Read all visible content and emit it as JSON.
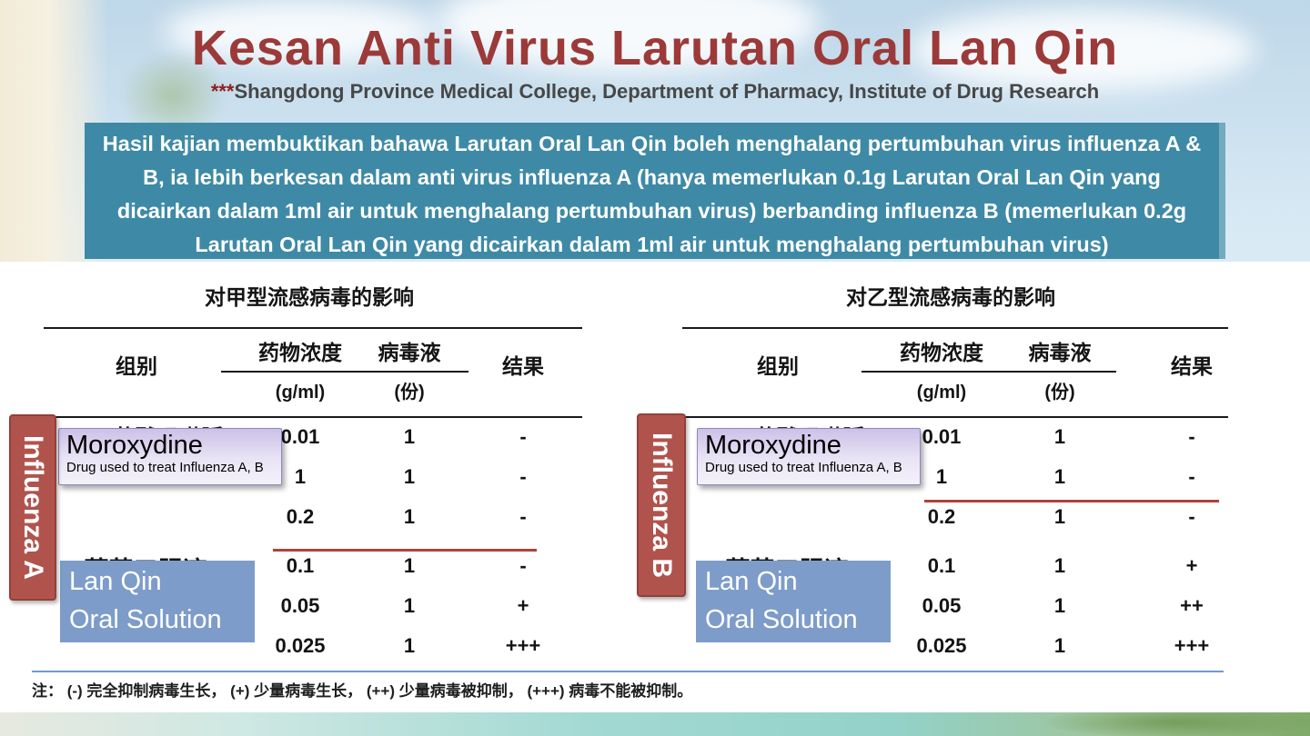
{
  "header": {
    "title": "Kesan Anti Virus Larutan Oral Lan Qin",
    "subtitle_stars": "***",
    "subtitle": "Shangdong Province Medical College, Department of Pharmacy, Institute of Drug Research"
  },
  "summary_box": {
    "text": "Hasil kajian membuktikan bahawa Larutan Oral Lan Qin boleh menghalang pertumbuhan virus influenza A & B, ia lebih berkesan dalam anti virus influenza A (hanya memerlukan 0.1g Larutan Oral Lan Qin yang dicairkan dalam 1ml air untuk menghalang pertumbuhan virus) berbanding influenza B (memerlukan 0.2g Larutan Oral Lan Qin yang dicairkan dalam 1ml air untuk menghalang pertumbuhan virus)"
  },
  "tables": [
    {
      "side_label": "Influenza A",
      "title": "对甲型流感病毒的影响",
      "headers": {
        "group": "组别",
        "concentration": "药物浓度",
        "concentration_unit": "(g/ml)",
        "virus": "病毒液",
        "virus_unit": "(份)",
        "result": "结果"
      },
      "group1_cn": "盐酸吗啉胍",
      "group2_cn": "蓝芩口服液",
      "moroxydine": {
        "title": "Moroxydine",
        "subtitle": "Drug used to treat Influenza A, B"
      },
      "lanqin": {
        "line1": "Lan Qin",
        "line2": "Oral Solution"
      },
      "rows": [
        {
          "c": "0.01",
          "v": "1",
          "r": "-"
        },
        {
          "c": "1",
          "v": "1",
          "r": "-"
        },
        {
          "c": "0.2",
          "v": "1",
          "r": "-"
        },
        {
          "c": "0.1",
          "v": "1",
          "r": "-"
        },
        {
          "c": "0.05",
          "v": "1",
          "r": "+"
        },
        {
          "c": "0.025",
          "v": "1",
          "r": "+++"
        }
      ],
      "red_line_above_row": 3
    },
    {
      "side_label": "Influenza B",
      "title": "对乙型流感病毒的影响",
      "headers": {
        "group": "组别",
        "concentration": "药物浓度",
        "concentration_unit": "(g/ml)",
        "virus": "病毒液",
        "virus_unit": "(份)",
        "result": "结果"
      },
      "group1_cn": "盐酸吗啉胍",
      "group2_cn": "蓝芩口服液",
      "moroxydine": {
        "title": "Moroxydine",
        "subtitle": "Drug used to treat Influenza A, B"
      },
      "lanqin": {
        "line1": "Lan Qin",
        "line2": "Oral Solution"
      },
      "rows": [
        {
          "c": "0.01",
          "v": "1",
          "r": "-"
        },
        {
          "c": "1",
          "v": "1",
          "r": "-"
        },
        {
          "c": "0.2",
          "v": "1",
          "r": "-"
        },
        {
          "c": "0.1",
          "v": "1",
          "r": "+"
        },
        {
          "c": "0.05",
          "v": "1",
          "r": "++"
        },
        {
          "c": "0.025",
          "v": "1",
          "r": "+++"
        }
      ],
      "red_line_above_row": 2
    }
  ],
  "footnote": "注：  (-) 完全抑制病毒生长，  (+) 少量病毒生长，  (++) 少量病毒被抑制，  (+++) 病毒不能被抑制。",
  "colors": {
    "title_red": "#9c3a39",
    "summary_teal": "#3e8aa6",
    "side_label_red": "#b1534d",
    "lanqin_blue": "#7d9cc9",
    "moroxydine_lavender": "#d9cfee",
    "red_threshold_line": "#b0413c",
    "footer_blue_line": "#6f9ad0"
  }
}
